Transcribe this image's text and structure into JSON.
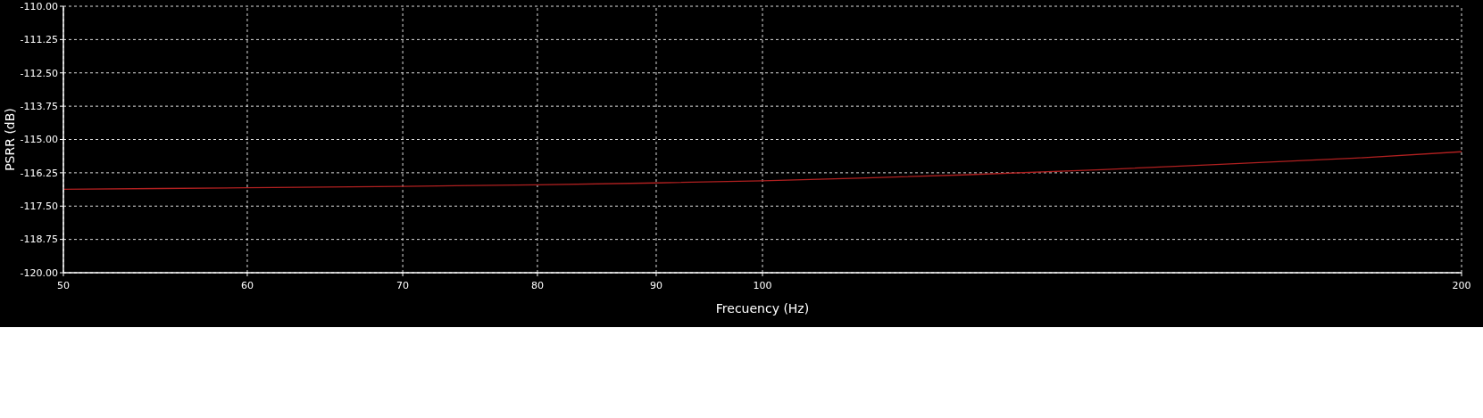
{
  "chart_data": {
    "type": "line",
    "xlabel": "Frecuency (Hz)",
    "ylabel": "PSRR (dB)",
    "log": "x",
    "grid": true,
    "xlim": [
      50,
      200
    ],
    "ylim": [
      -120,
      -110
    ],
    "xticks": [
      50,
      60,
      70,
      80,
      90,
      100,
      200
    ],
    "yticks": [
      {
        "value": -120,
        "label": "-120.00"
      },
      {
        "value": -118.75,
        "label": "-118.75"
      },
      {
        "value": -117.5,
        "label": "-117.50"
      },
      {
        "value": -116.25,
        "label": "-116.25"
      },
      {
        "value": -115,
        "label": "-115.00"
      },
      {
        "value": -113.75,
        "label": "-113.75"
      },
      {
        "value": -112.5,
        "label": "-112.50"
      },
      {
        "value": -111.25,
        "label": "-111.25"
      },
      {
        "value": -110,
        "label": "-110.00"
      }
    ],
    "x": [
      50,
      55,
      60,
      70,
      80,
      90,
      100,
      110,
      122,
      140,
      156,
      180,
      200
    ],
    "series": [
      {
        "color": "#b02020",
        "values": [
          -116.87,
          -116.84,
          -116.81,
          -116.76,
          -116.7,
          -116.63,
          -116.55,
          -116.45,
          -116.33,
          -116.13,
          -115.95,
          -115.7,
          -115.46
        ]
      }
    ]
  }
}
